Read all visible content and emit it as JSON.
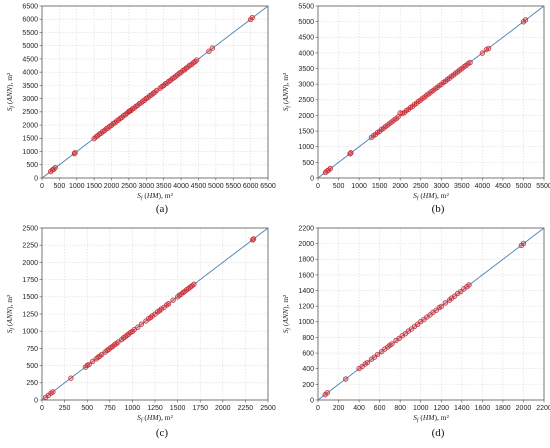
{
  "colors": {
    "points": "#c8202c",
    "diagonal": "#4a7fb0",
    "grid": "#d9d9d9"
  },
  "chart_data": [
    {
      "type": "scatter",
      "caption": "(a)",
      "xlabel": "S_f (HM), m²",
      "ylabel": "S_f (ANN), m²",
      "xlim": [
        0,
        6500
      ],
      "ylim": [
        0,
        6500
      ],
      "ticks": [
        0,
        500,
        1000,
        1500,
        2000,
        2500,
        3000,
        3500,
        4000,
        4500,
        5000,
        5500,
        6000,
        6500
      ],
      "tick_labels": [
        "0",
        "500",
        "1000",
        "1500",
        "2000",
        "2500",
        "3000",
        "3500",
        "4000",
        "4500",
        "5000",
        "5500",
        "6000",
        "6500"
      ],
      "grid": true,
      "reference_line": "y = x",
      "x": [
        250,
        300,
        340,
        380,
        930,
        950,
        1500,
        1550,
        1600,
        1650,
        1700,
        1750,
        1800,
        1850,
        1900,
        1950,
        2000,
        2050,
        2100,
        2150,
        2200,
        2250,
        2300,
        2350,
        2400,
        2450,
        2500,
        2520,
        2560,
        2600,
        2650,
        2700,
        2750,
        2800,
        2850,
        2900,
        2950,
        3000,
        3050,
        3100,
        3150,
        3200,
        3250,
        3300,
        3400,
        3450,
        3500,
        3550,
        3600,
        3650,
        3700,
        3750,
        3800,
        3850,
        3900,
        3950,
        4000,
        4050,
        4100,
        4150,
        4200,
        4250,
        4300,
        4350,
        4400,
        4450,
        4800,
        4900,
        6000,
        6050
      ],
      "y": [
        240,
        305,
        335,
        390,
        920,
        955,
        1490,
        1555,
        1595,
        1660,
        1690,
        1755,
        1795,
        1860,
        1890,
        1955,
        1995,
        2060,
        2090,
        2160,
        2195,
        2255,
        2290,
        2360,
        2395,
        2455,
        2510,
        2530,
        2550,
        2610,
        2640,
        2705,
        2745,
        2810,
        2840,
        2905,
        2945,
        3010,
        3040,
        3110,
        3140,
        3205,
        3245,
        3310,
        3395,
        3455,
        3495,
        3560,
        3590,
        3655,
        3695,
        3760,
        3790,
        3855,
        3895,
        3960,
        3995,
        4060,
        4090,
        4155,
        4195,
        4260,
        4290,
        4355,
        4395,
        4460,
        4790,
        4910,
        5990,
        6060
      ]
    },
    {
      "type": "scatter",
      "caption": "(b)",
      "xlabel": "S_f (HM), m²",
      "ylabel": "S_f (ANN), m²",
      "xlim": [
        0,
        5500
      ],
      "ylim": [
        0,
        5500
      ],
      "ticks": [
        0,
        500,
        1000,
        1500,
        2000,
        2500,
        3000,
        3500,
        4000,
        4500,
        5000,
        5500
      ],
      "tick_labels": [
        "0",
        "500",
        "1000",
        "1500",
        "2000",
        "2500",
        "3000",
        "3500",
        "4000",
        "4500",
        "5000",
        "5500"
      ],
      "grid": true,
      "reference_line": "y = x",
      "x": [
        180,
        220,
        260,
        300,
        780,
        800,
        1300,
        1350,
        1400,
        1450,
        1500,
        1550,
        1600,
        1650,
        1700,
        1750,
        1800,
        1850,
        1900,
        1950,
        2000,
        2050,
        2100,
        2150,
        2200,
        2250,
        2300,
        2350,
        2400,
        2450,
        2500,
        2550,
        2600,
        2650,
        2700,
        2750,
        2800,
        2850,
        2900,
        2950,
        3000,
        3050,
        3100,
        3150,
        3200,
        3250,
        3300,
        3350,
        3400,
        3450,
        3500,
        3550,
        3600,
        3650,
        3700,
        4000,
        4100,
        4150,
        5000,
        5050
      ],
      "y": [
        175,
        225,
        255,
        305,
        775,
        805,
        1295,
        1355,
        1395,
        1455,
        1495,
        1555,
        1595,
        1655,
        1695,
        1755,
        1795,
        1855,
        1895,
        1955,
        2080,
        2060,
        2095,
        2155,
        2195,
        2255,
        2295,
        2355,
        2395,
        2455,
        2495,
        2555,
        2595,
        2655,
        2695,
        2755,
        2795,
        2855,
        2895,
        2955,
        2995,
        3055,
        3095,
        3155,
        3195,
        3255,
        3295,
        3355,
        3395,
        3455,
        3495,
        3555,
        3595,
        3655,
        3695,
        3995,
        4105,
        4145,
        4995,
        5055
      ]
    },
    {
      "type": "scatter",
      "caption": "(c)",
      "xlabel": "S_f (HM), m²",
      "ylabel": "S_f (ANN), m²",
      "xlim": [
        0,
        2500
      ],
      "ylim": [
        0,
        2500
      ],
      "ticks": [
        0,
        250,
        500,
        750,
        1000,
        1250,
        1500,
        1750,
        2000,
        2250,
        2500
      ],
      "tick_labels": [
        "0",
        "250",
        "500",
        "750",
        "1000",
        "1250",
        "1500",
        "1750",
        "2000",
        "2250",
        "2500"
      ],
      "grid": true,
      "reference_line": "y = x",
      "x": [
        40,
        70,
        100,
        120,
        320,
        480,
        500,
        520,
        560,
        600,
        620,
        640,
        660,
        700,
        720,
        740,
        760,
        780,
        800,
        820,
        840,
        880,
        900,
        920,
        940,
        960,
        980,
        1000,
        1020,
        1060,
        1100,
        1150,
        1180,
        1200,
        1220,
        1250,
        1280,
        1300,
        1320,
        1350,
        1380,
        1400,
        1450,
        1500,
        1520,
        1540,
        1560,
        1580,
        1600,
        1620,
        1640,
        1660,
        1680,
        2330,
        2340
      ],
      "y": [
        40,
        68,
        102,
        118,
        318,
        478,
        502,
        518,
        562,
        598,
        622,
        638,
        662,
        698,
        722,
        738,
        762,
        778,
        802,
        818,
        842,
        878,
        902,
        918,
        942,
        958,
        982,
        998,
        1022,
        1058,
        1102,
        1148,
        1182,
        1198,
        1222,
        1248,
        1282,
        1298,
        1322,
        1348,
        1382,
        1398,
        1452,
        1498,
        1522,
        1538,
        1562,
        1578,
        1602,
        1618,
        1642,
        1658,
        1682,
        2328,
        2342
      ]
    },
    {
      "type": "scatter",
      "caption": "(d)",
      "xlabel": "S_f (HM), m²",
      "ylabel": "S_f (ANN), m²",
      "xlim": [
        0,
        2200
      ],
      "ylim": [
        0,
        2200
      ],
      "ticks": [
        0,
        200,
        400,
        600,
        800,
        1000,
        1200,
        1400,
        1600,
        1800,
        2000,
        2200
      ],
      "tick_labels": [
        "0",
        "200",
        "400",
        "600",
        "800",
        "1000",
        "1200",
        "1400",
        "1600",
        "1800",
        "2000",
        "2200"
      ],
      "grid": true,
      "reference_line": "y = x",
      "x": [
        70,
        90,
        270,
        400,
        430,
        460,
        480,
        520,
        550,
        580,
        620,
        650,
        680,
        700,
        720,
        760,
        790,
        820,
        850,
        880,
        910,
        940,
        970,
        1000,
        1030,
        1060,
        1090,
        1120,
        1150,
        1180,
        1200,
        1240,
        1280,
        1300,
        1330,
        1360,
        1390,
        1420,
        1450,
        1470,
        1980,
        2000
      ],
      "y": [
        68,
        92,
        268,
        402,
        428,
        462,
        478,
        522,
        548,
        582,
        618,
        652,
        678,
        702,
        718,
        762,
        788,
        822,
        848,
        882,
        908,
        942,
        968,
        1002,
        1028,
        1062,
        1088,
        1122,
        1148,
        1182,
        1198,
        1242,
        1278,
        1302,
        1328,
        1362,
        1388,
        1422,
        1448,
        1472,
        1978,
        2002
      ]
    }
  ]
}
